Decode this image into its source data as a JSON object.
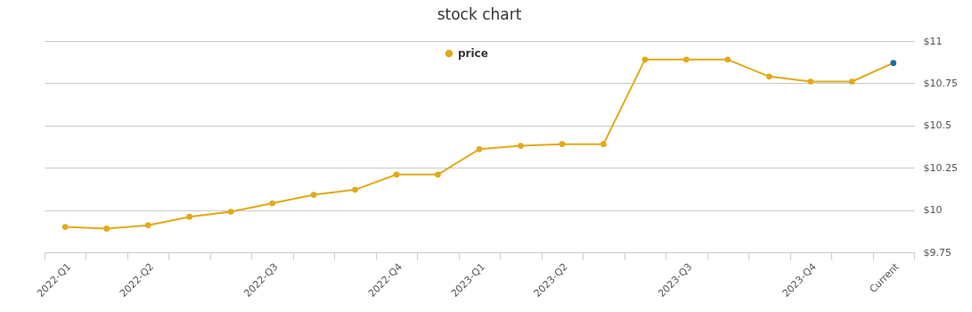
{
  "chart_data": {
    "type": "line",
    "title": "stock chart",
    "categories": [
      "2022-Q1",
      null,
      "2022-Q2",
      null,
      null,
      "2022-Q3",
      null,
      null,
      "2022-Q4",
      null,
      "2023-Q1",
      null,
      "2023-Q2",
      null,
      null,
      "2023-Q3",
      null,
      null,
      "2023-Q4",
      null,
      "Current"
    ],
    "series": [
      {
        "name": "price",
        "color": "#e0aa1a",
        "values": [
          9.9,
          9.89,
          9.91,
          9.96,
          9.99,
          10.04,
          10.09,
          10.12,
          10.21,
          10.21,
          10.36,
          10.38,
          10.39,
          10.39,
          10.89,
          10.89,
          10.89,
          10.79,
          10.76,
          10.76,
          10.87
        ],
        "colors": [
          "#e0aa1a",
          "#e0aa1a",
          "#e0aa1a",
          "#e0aa1a",
          "#e0aa1a",
          "#e0aa1a",
          "#e0aa1a",
          "#e0aa1a",
          "#e0aa1a",
          "#e0aa1a",
          "#e0aa1a",
          "#e0aa1a",
          "#e0aa1a",
          "#e0aa1a",
          "#e0aa1a",
          "#e0aa1a",
          "#e0aa1a",
          "#e0aa1a",
          "#e0aa1a",
          "#e0aa1a",
          "#1a6fa8"
        ]
      }
    ],
    "ylim": [
      9.75,
      11
    ],
    "yticks": [
      {
        "value": 9.75,
        "label": "$9.75"
      },
      {
        "value": 10,
        "label": "$10"
      },
      {
        "value": 10.25,
        "label": "$10.25"
      },
      {
        "value": 10.5,
        "label": "$10.5"
      },
      {
        "value": 10.75,
        "label": "$10.75"
      },
      {
        "value": 11,
        "label": "$11"
      }
    ],
    "grid": "y",
    "legend": "top",
    "marker": "circle",
    "line_style": "solid"
  }
}
